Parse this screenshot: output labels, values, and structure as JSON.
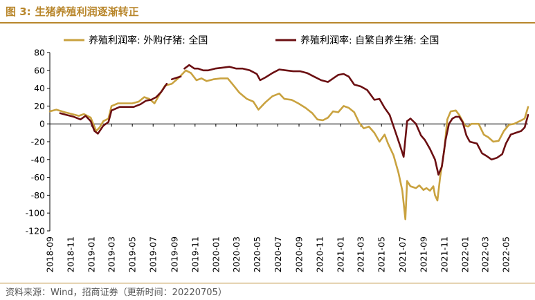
{
  "header": {
    "figure_label": "图 3:",
    "title": "生猪养殖利润逐渐转正"
  },
  "source": "资料来源：Wind，招商证券（更新时间：20220705）",
  "colors": {
    "accent": "#b8862b",
    "series1": "#c9a23f",
    "series2": "#6b0f12"
  },
  "chart_data": {
    "type": "line",
    "title": "",
    "xlabel": "",
    "ylabel": "",
    "ylim": [
      -120,
      80
    ],
    "yticks": [
      -120,
      -100,
      -80,
      -60,
      -40,
      -20,
      0,
      20,
      40,
      60,
      80
    ],
    "x_tick_labels": [
      "2018-09",
      "2018-11",
      "2019-01",
      "2019-03",
      "2019-05",
      "2019-07",
      "2019-09",
      "2019-11",
      "2020-01",
      "2020-03",
      "2020-05",
      "2020-07",
      "2020-09",
      "2020-11",
      "2021-01",
      "2021-03",
      "2021-05",
      "2021-07",
      "2021-09",
      "2021-11",
      "2022-01",
      "2022-03",
      "2022-05"
    ],
    "x_range": [
      "2018-09-01",
      "2022-07-05"
    ],
    "legend_position": "top",
    "series": [
      {
        "name": "养殖利润率: 外购仔猪: 全国",
        "color": "#c9a23f",
        "points": [
          [
            "2018-09-01",
            14
          ],
          [
            "2018-09-20",
            16
          ],
          [
            "2018-10-15",
            13
          ],
          [
            "2018-11-05",
            11
          ],
          [
            "2018-11-25",
            9
          ],
          [
            "2018-12-10",
            11
          ],
          [
            "2018-12-30",
            7
          ],
          [
            "2019-01-15",
            -8
          ],
          [
            "2019-01-25",
            -4
          ],
          [
            "2019-02-05",
            3
          ],
          [
            "2019-02-20",
            6
          ],
          [
            "2019-03-01",
            20
          ],
          [
            "2019-03-20",
            23
          ],
          [
            "2019-04-10",
            23
          ],
          [
            "2019-05-01",
            23
          ],
          [
            "2019-05-20",
            25
          ],
          [
            "2019-06-05",
            30
          ],
          [
            "2019-06-20",
            28
          ],
          [
            "2019-07-05",
            23
          ],
          [
            "2019-07-20",
            33
          ],
          [
            "2019-08-05",
            43
          ],
          [
            "2019-08-25",
            45
          ],
          [
            "2019-09-15",
            52
          ],
          [
            "2019-10-05",
            60
          ],
          [
            "2019-10-20",
            57
          ],
          [
            "2019-11-05",
            49
          ],
          [
            "2019-11-20",
            51
          ],
          [
            "2019-12-05",
            48
          ],
          [
            "2019-12-25",
            50
          ],
          [
            "2020-01-15",
            51
          ],
          [
            "2020-02-05",
            51
          ],
          [
            "2020-02-20",
            44
          ],
          [
            "2020-03-10",
            35
          ],
          [
            "2020-04-01",
            28
          ],
          [
            "2020-04-20",
            25
          ],
          [
            "2020-05-05",
            16
          ],
          [
            "2020-05-25",
            24
          ],
          [
            "2020-06-15",
            31
          ],
          [
            "2020-07-05",
            34
          ],
          [
            "2020-07-20",
            28
          ],
          [
            "2020-08-10",
            27
          ],
          [
            "2020-08-30",
            23
          ],
          [
            "2020-09-20",
            18
          ],
          [
            "2020-10-10",
            12
          ],
          [
            "2020-10-25",
            5
          ],
          [
            "2020-11-10",
            4
          ],
          [
            "2020-11-25",
            7
          ],
          [
            "2020-12-10",
            14
          ],
          [
            "2020-12-25",
            13
          ],
          [
            "2021-01-10",
            20
          ],
          [
            "2021-01-25",
            18
          ],
          [
            "2021-02-10",
            13
          ],
          [
            "2021-02-25",
            1
          ],
          [
            "2021-03-10",
            -5
          ],
          [
            "2021-03-25",
            -3
          ],
          [
            "2021-04-10",
            -10
          ],
          [
            "2021-04-25",
            -20
          ],
          [
            "2021-05-10",
            -12
          ],
          [
            "2021-05-20",
            -22
          ],
          [
            "2021-06-05",
            -35
          ],
          [
            "2021-06-20",
            -55
          ],
          [
            "2021-07-01",
            -75
          ],
          [
            "2021-07-10",
            -107
          ],
          [
            "2021-07-15",
            -64
          ],
          [
            "2021-07-25",
            -70
          ],
          [
            "2021-08-10",
            -72
          ],
          [
            "2021-08-20",
            -69
          ],
          [
            "2021-09-01",
            -74
          ],
          [
            "2021-09-10",
            -72
          ],
          [
            "2021-09-20",
            -75
          ],
          [
            "2021-09-30",
            -70
          ],
          [
            "2021-10-05",
            -80
          ],
          [
            "2021-10-12",
            -86
          ],
          [
            "2021-10-20",
            -60
          ],
          [
            "2021-11-01",
            -30
          ],
          [
            "2021-11-10",
            5
          ],
          [
            "2021-11-20",
            14
          ],
          [
            "2021-12-05",
            15
          ],
          [
            "2021-12-15",
            10
          ],
          [
            "2022-01-01",
            -2
          ],
          [
            "2022-01-10",
            -3
          ],
          [
            "2022-01-20",
            0
          ],
          [
            "2022-02-10",
            0
          ],
          [
            "2022-02-25",
            -12
          ],
          [
            "2022-03-10",
            -15
          ],
          [
            "2022-03-25",
            -20
          ],
          [
            "2022-04-10",
            -19
          ],
          [
            "2022-04-25",
            -8
          ],
          [
            "2022-05-10",
            -1
          ],
          [
            "2022-05-25",
            0
          ],
          [
            "2022-06-10",
            3
          ],
          [
            "2022-06-25",
            6
          ],
          [
            "2022-07-05",
            19
          ]
        ]
      },
      {
        "name": "养殖利润率: 自繁自养生猪: 全国",
        "color": "#6b0f12",
        "segments": [
          [
            [
              "2018-10-01",
              12
            ],
            [
              "2018-10-20",
              10
            ],
            [
              "2018-11-10",
              8
            ],
            [
              "2018-11-30",
              5
            ],
            [
              "2018-12-15",
              9
            ],
            [
              "2018-12-30",
              3
            ],
            [
              "2019-01-10",
              -8
            ],
            [
              "2019-01-20",
              -11
            ],
            [
              "2019-02-05",
              -2
            ],
            [
              "2019-02-20",
              2
            ],
            [
              "2019-03-01",
              15
            ],
            [
              "2019-03-25",
              19
            ],
            [
              "2019-04-15",
              19
            ],
            [
              "2019-05-05",
              19
            ],
            [
              "2019-05-25",
              22
            ],
            [
              "2019-06-10",
              26
            ],
            [
              "2019-06-25",
              27
            ],
            [
              "2019-07-10",
              30
            ],
            [
              "2019-07-25",
              36
            ],
            [
              "2019-08-10",
              45
            ]
          ],
          [
            [
              "2019-08-25",
              50
            ],
            [
              "2019-09-10",
              52
            ],
            [
              "2019-09-20",
              53
            ]
          ],
          [
            [
              "2019-10-01",
              62
            ],
            [
              "2019-10-15",
              66
            ],
            [
              "2019-10-30",
              62
            ],
            [
              "2019-11-10",
              62
            ],
            [
              "2019-11-25",
              60
            ],
            [
              "2019-12-10",
              60
            ],
            [
              "2019-12-30",
              62
            ],
            [
              "2020-01-20",
              63
            ],
            [
              "2020-02-10",
              64
            ],
            [
              "2020-03-01",
              62
            ],
            [
              "2020-03-20",
              62
            ],
            [
              "2020-04-10",
              60
            ],
            [
              "2020-04-30",
              56
            ],
            [
              "2020-05-10",
              49
            ],
            [
              "2020-05-25",
              52
            ],
            [
              "2020-06-15",
              57
            ],
            [
              "2020-07-05",
              61
            ],
            [
              "2020-07-25",
              60
            ],
            [
              "2020-08-15",
              59
            ],
            [
              "2020-09-05",
              59
            ],
            [
              "2020-09-25",
              57
            ],
            [
              "2020-10-15",
              53
            ],
            [
              "2020-11-05",
              49
            ],
            [
              "2020-11-25",
              47
            ],
            [
              "2020-12-10",
              51
            ],
            [
              "2020-12-25",
              55
            ],
            [
              "2021-01-10",
              56
            ],
            [
              "2021-01-25",
              53
            ],
            [
              "2021-02-10",
              44
            ],
            [
              "2021-03-01",
              42
            ],
            [
              "2021-03-20",
              38
            ],
            [
              "2021-04-10",
              27
            ],
            [
              "2021-04-25",
              28
            ],
            [
              "2021-05-10",
              18
            ],
            [
              "2021-05-25",
              10
            ],
            [
              "2021-06-10",
              -8
            ],
            [
              "2021-06-25",
              -25
            ],
            [
              "2021-07-05",
              -37
            ],
            [
              "2021-07-15",
              3
            ],
            [
              "2021-07-25",
              6
            ],
            [
              "2021-08-10",
              0
            ],
            [
              "2021-08-25",
              -13
            ],
            [
              "2021-09-05",
              -18
            ],
            [
              "2021-09-20",
              -28
            ],
            [
              "2021-10-05",
              -40
            ],
            [
              "2021-10-15",
              -57
            ],
            [
              "2021-10-25",
              -48
            ],
            [
              "2021-11-05",
              -18
            ],
            [
              "2021-11-15",
              0
            ],
            [
              "2021-11-25",
              6
            ],
            [
              "2021-12-05",
              8
            ],
            [
              "2021-12-15",
              8
            ],
            [
              "2021-12-25",
              2
            ],
            [
              "2022-01-05",
              -13
            ],
            [
              "2022-01-15",
              -20
            ],
            [
              "2022-02-05",
              -22
            ],
            [
              "2022-02-20",
              -33
            ],
            [
              "2022-03-05",
              -36
            ],
            [
              "2022-03-20",
              -40
            ],
            [
              "2022-04-05",
              -38
            ],
            [
              "2022-04-20",
              -34
            ],
            [
              "2022-05-01",
              -22
            ],
            [
              "2022-05-15",
              -12
            ],
            [
              "2022-05-30",
              -10
            ],
            [
              "2022-06-15",
              -8
            ],
            [
              "2022-06-25",
              -4
            ],
            [
              "2022-07-05",
              10
            ]
          ]
        ]
      }
    ]
  }
}
